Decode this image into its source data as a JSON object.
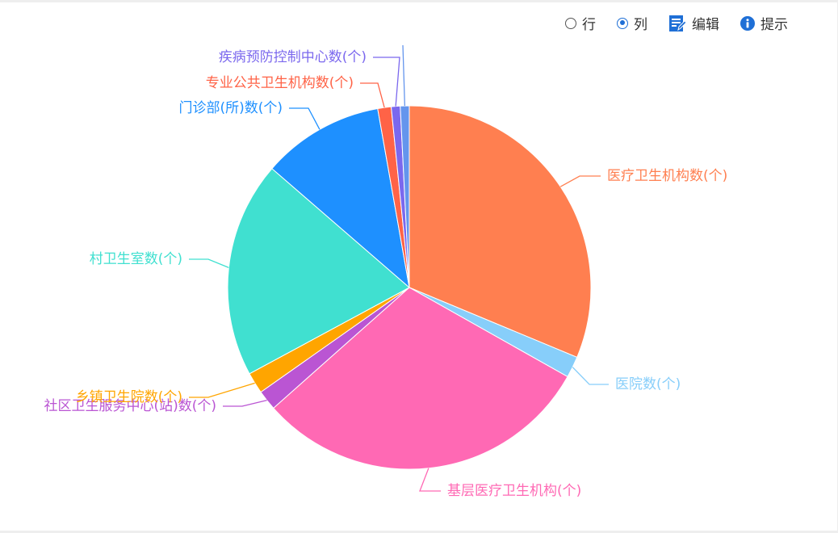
{
  "toolbar": {
    "row_label": "行",
    "col_label": "列",
    "edit_label": "编辑",
    "tip_label": "提示",
    "selected": "列",
    "accent_color": "#1f6fd6"
  },
  "chart_data": {
    "type": "pie",
    "title": "",
    "start_angle_deg": 90,
    "direction": "clockwise",
    "slices": [
      {
        "label": "医疗卫生机构数(个)",
        "value": 31.4,
        "color": "#ff7f50"
      },
      {
        "label": "医院数(个)",
        "value": 1.9,
        "color": "#87cefa"
      },
      {
        "label": "基层医疗卫生机构(个)",
        "value": 30.4,
        "color": "#ff69b4"
      },
      {
        "label": "社区卫生服务中心(站)数(个)",
        "value": 1.8,
        "color": "#ba55d3"
      },
      {
        "label": "乡镇卫生院数(个)",
        "value": 1.9,
        "color": "#ffa500"
      },
      {
        "label": "村卫生室数(个)",
        "value": 19.3,
        "color": "#40e0d0"
      },
      {
        "label": "门诊部(所)数(个)",
        "value": 10.9,
        "color": "#1e90ff"
      },
      {
        "label": "专业公共卫生机构数(个)",
        "value": 1.2,
        "color": "#ff6347"
      },
      {
        "label": "疾病预防控制中心数(个)",
        "value": 0.8,
        "color": "#7b68ee"
      },
      {
        "label": "",
        "value": 0.8,
        "color": "#6495ed"
      }
    ]
  }
}
